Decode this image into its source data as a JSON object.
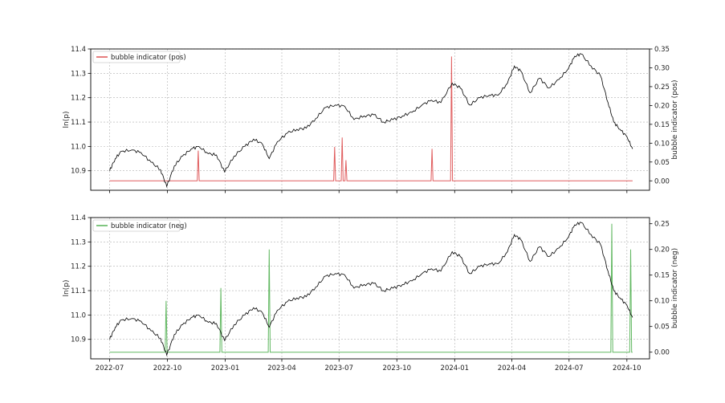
{
  "chart_data": [
    {
      "type": "line",
      "ylabel_left": "ln(p)",
      "ylabel_right": "bubble indicator (pos)",
      "legend": {
        "label": "bubble indicator (pos)",
        "placement": "top-left"
      },
      "ylim_left": [
        10.82,
        11.4
      ],
      "ylim_right": [
        -0.025,
        0.35
      ],
      "left_ticks": [
        "10.9",
        "11.0",
        "11.1",
        "11.2",
        "11.3",
        "11.4"
      ],
      "right_ticks": [
        "0.00",
        "0.05",
        "0.10",
        "0.15",
        "0.20",
        "0.25",
        "0.30",
        "0.35"
      ],
      "grid": true,
      "indicator_color": "#d62728",
      "indicator_spikes": [
        {
          "x": "2022-11-19",
          "y": 0.08
        },
        {
          "x": "2023-06-24",
          "y": 0.09
        },
        {
          "x": "2023-07-06",
          "y": 0.115
        },
        {
          "x": "2023-07-12",
          "y": 0.055
        },
        {
          "x": "2023-11-26",
          "y": 0.085
        },
        {
          "x": "2023-12-27",
          "y": 0.33
        }
      ]
    },
    {
      "type": "line",
      "ylabel_left": "ln(p)",
      "ylabel_right": "bubble indicator (neg)",
      "legend": {
        "label": "bubble indicator (neg)",
        "placement": "top-left"
      },
      "ylim_left": [
        10.82,
        11.4
      ],
      "ylim_right": [
        -0.013,
        0.262
      ],
      "left_ticks": [
        "10.9",
        "11.0",
        "11.1",
        "11.2",
        "11.3",
        "11.4"
      ],
      "right_ticks": [
        "0.00",
        "0.05",
        "0.10",
        "0.15",
        "0.20",
        "0.25"
      ],
      "grid": true,
      "indicator_color": "#2ca02c",
      "indicator_spikes": [
        {
          "x": "2022-09-29",
          "y": 0.1
        },
        {
          "x": "2022-12-25",
          "y": 0.125
        },
        {
          "x": "2023-03-12",
          "y": 0.2
        },
        {
          "x": "2024-09-07",
          "y": 0.25
        },
        {
          "x": "2024-10-07",
          "y": 0.2
        }
      ]
    }
  ],
  "shared_x": {
    "xlim": [
      "2022-06-01",
      "2024-11-06"
    ],
    "ticks": [
      "2022-07",
      "2022-10",
      "2023-01",
      "2023-04",
      "2023-07",
      "2023-10",
      "2024-01",
      "2024-04",
      "2024-07",
      "2024-10"
    ]
  },
  "price_series": {
    "name": "ln(p)",
    "color": "#000000",
    "points": [
      [
        "2022-07-01",
        10.9
      ],
      [
        "2022-07-10",
        10.95
      ],
      [
        "2022-07-20",
        10.98
      ],
      [
        "2022-08-05",
        10.985
      ],
      [
        "2022-08-20",
        10.975
      ],
      [
        "2022-09-05",
        10.935
      ],
      [
        "2022-09-20",
        10.905
      ],
      [
        "2022-09-30",
        10.835
      ],
      [
        "2022-10-12",
        10.92
      ],
      [
        "2022-10-25",
        10.96
      ],
      [
        "2022-11-08",
        10.99
      ],
      [
        "2022-11-20",
        11.0
      ],
      [
        "2022-12-05",
        10.97
      ],
      [
        "2022-12-18",
        10.965
      ],
      [
        "2022-12-31",
        10.895
      ],
      [
        "2023-01-15",
        10.96
      ],
      [
        "2023-02-01",
        11.0
      ],
      [
        "2023-02-15",
        11.03
      ],
      [
        "2023-03-01",
        11.01
      ],
      [
        "2023-03-12",
        10.95
      ],
      [
        "2023-03-25",
        11.02
      ],
      [
        "2023-04-10",
        11.055
      ],
      [
        "2023-04-25",
        11.07
      ],
      [
        "2023-05-10",
        11.075
      ],
      [
        "2023-05-25",
        11.115
      ],
      [
        "2023-06-10",
        11.16
      ],
      [
        "2023-06-25",
        11.17
      ],
      [
        "2023-07-10",
        11.165
      ],
      [
        "2023-07-25",
        11.11
      ],
      [
        "2023-08-10",
        11.125
      ],
      [
        "2023-08-25",
        11.13
      ],
      [
        "2023-09-10",
        11.1
      ],
      [
        "2023-09-25",
        11.11
      ],
      [
        "2023-10-10",
        11.125
      ],
      [
        "2023-10-25",
        11.14
      ],
      [
        "2023-11-10",
        11.17
      ],
      [
        "2023-11-25",
        11.19
      ],
      [
        "2023-12-10",
        11.18
      ],
      [
        "2023-12-28",
        11.26
      ],
      [
        "2024-01-10",
        11.24
      ],
      [
        "2024-01-25",
        11.17
      ],
      [
        "2024-02-10",
        11.2
      ],
      [
        "2024-02-25",
        11.21
      ],
      [
        "2024-03-10",
        11.21
      ],
      [
        "2024-03-25",
        11.26
      ],
      [
        "2024-04-05",
        11.33
      ],
      [
        "2024-04-15",
        11.31
      ],
      [
        "2024-04-30",
        11.22
      ],
      [
        "2024-05-15",
        11.28
      ],
      [
        "2024-05-30",
        11.24
      ],
      [
        "2024-06-15",
        11.275
      ],
      [
        "2024-06-30",
        11.32
      ],
      [
        "2024-07-10",
        11.37
      ],
      [
        "2024-07-20",
        11.38
      ],
      [
        "2024-08-05",
        11.33
      ],
      [
        "2024-08-20",
        11.29
      ],
      [
        "2024-09-01",
        11.18
      ],
      [
        "2024-09-10",
        11.1
      ],
      [
        "2024-09-20",
        11.07
      ],
      [
        "2024-10-01",
        11.04
      ],
      [
        "2024-10-10",
        10.99
      ]
    ]
  }
}
